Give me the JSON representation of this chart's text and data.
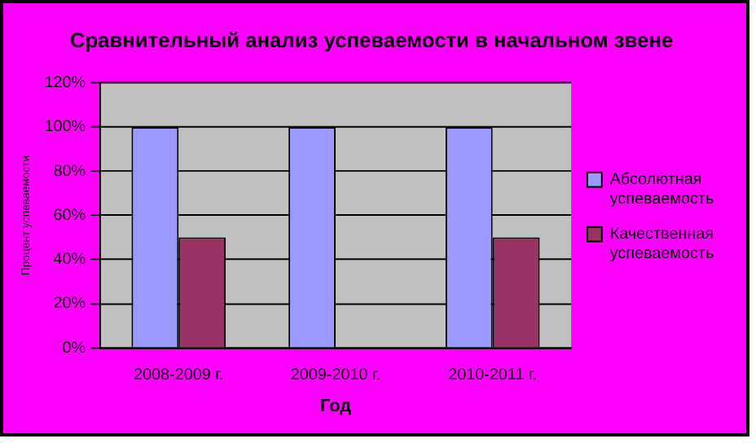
{
  "chart_data": {
    "type": "bar",
    "title": "Сравнительный анализ успеваемости в начальном звене",
    "xlabel": "Год",
    "ylabel": "Процент успеваемости",
    "categories": [
      "2008-2009 г.",
      "2009-2010 г.",
      "2010-2011 г."
    ],
    "series": [
      {
        "name": "Абсолютная успеваемость",
        "color": "#9999ff",
        "values": [
          100,
          100,
          100
        ]
      },
      {
        "name": "Качественная успеваемость",
        "color": "#993366",
        "values": [
          50,
          0,
          50
        ]
      }
    ],
    "ylim": [
      0,
      120
    ],
    "yticks": [
      {
        "value": 0,
        "label": "0%"
      },
      {
        "value": 20,
        "label": "20%"
      },
      {
        "value": 40,
        "label": "40%"
      },
      {
        "value": 60,
        "label": "60%"
      },
      {
        "value": 80,
        "label": "80%"
      },
      {
        "value": 100,
        "label": "100%"
      },
      {
        "value": 120,
        "label": "120%"
      }
    ],
    "grid": "y",
    "legend": "right"
  }
}
